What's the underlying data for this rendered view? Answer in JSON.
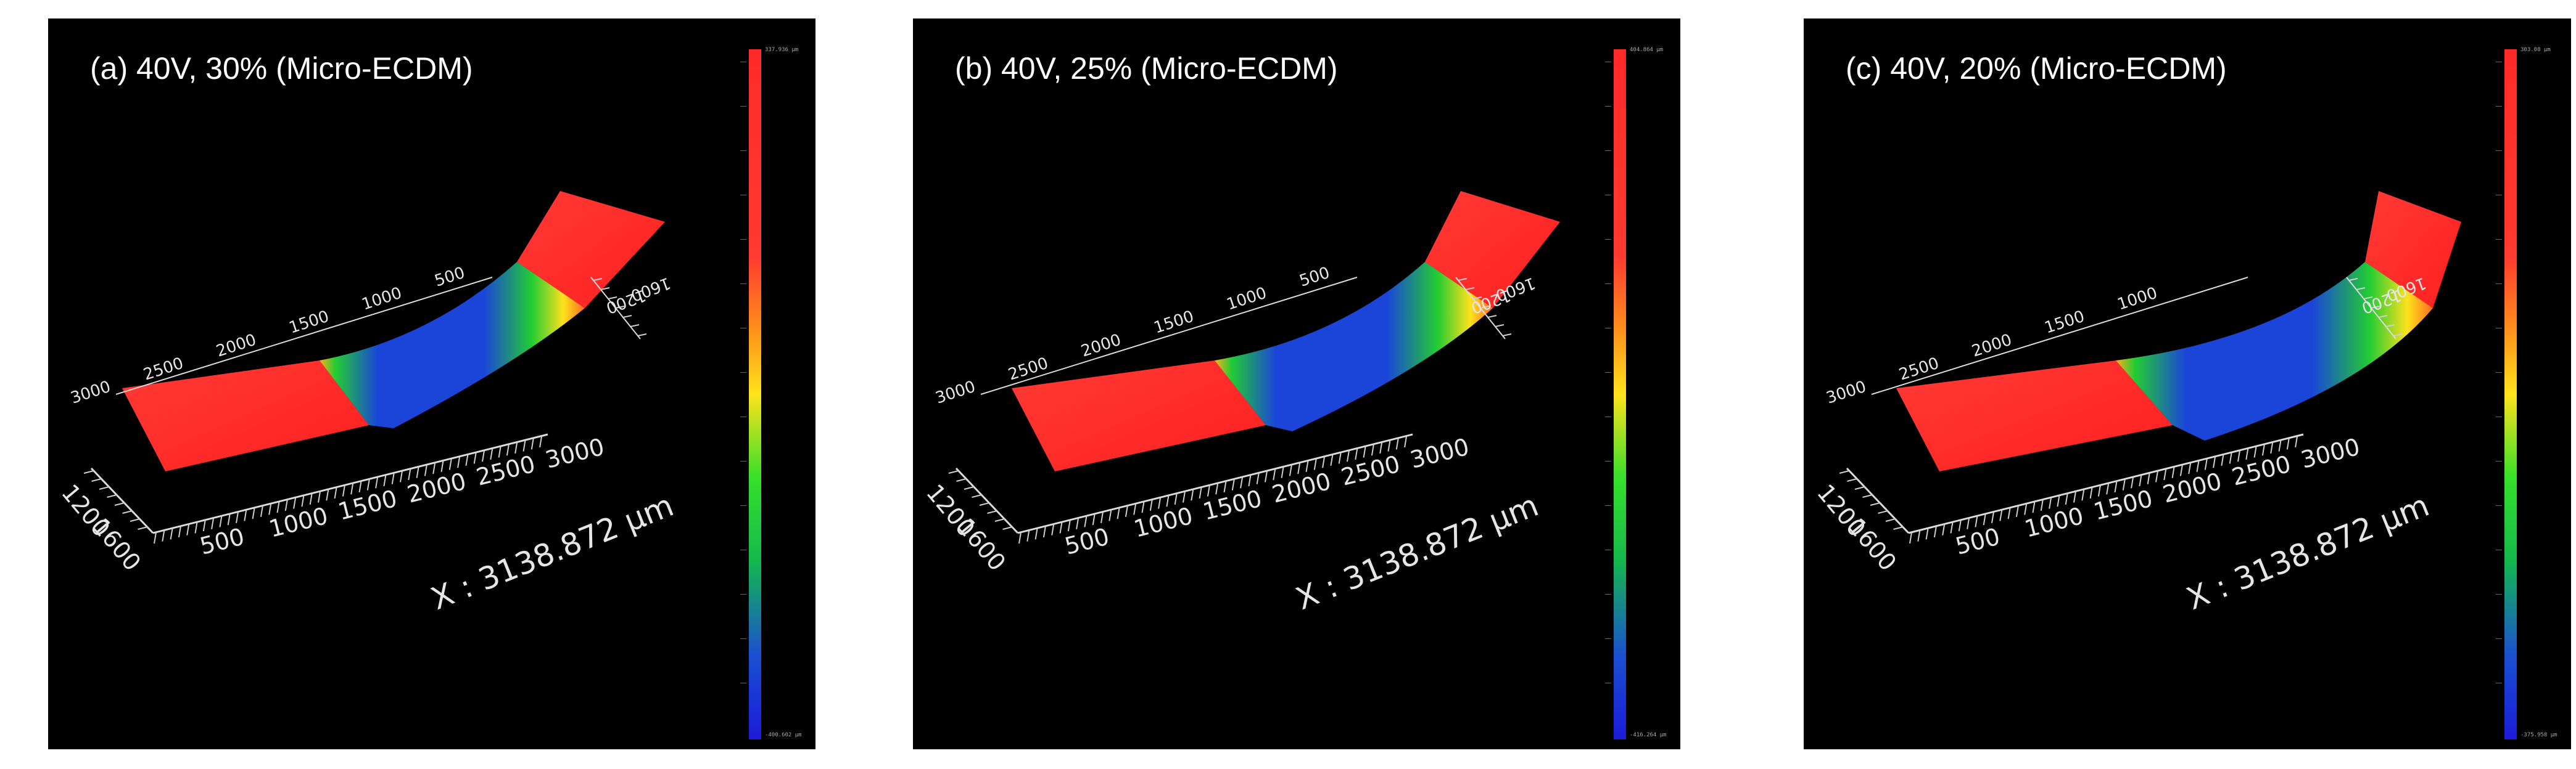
{
  "panels": [
    {
      "id": "a",
      "title": "(a) 40V, 30% (Micro-ECDM)",
      "colorbar": {
        "max": "337.936 µm",
        "min": "-400.602 µm"
      },
      "x_axis": {
        "label": "X : 3138.872 µm",
        "ticks": [
          "500",
          "1000",
          "1500",
          "2000",
          "2500",
          "3000"
        ]
      },
      "y_axis": {
        "ticks": [
          "1200",
          "1600"
        ]
      },
      "back_axis": {
        "ticks": [
          "3000",
          "2500",
          "2000",
          "1500",
          "1000",
          "500"
        ]
      },
      "right_axis": {
        "ticks": [
          "1200",
          "1600"
        ]
      }
    },
    {
      "id": "b",
      "title": "(b) 40V, 25% (Micro-ECDM)",
      "colorbar": {
        "max": "404.864 µm",
        "min": "-416.264 µm"
      },
      "x_axis": {
        "label": "X : 3138.872 µm",
        "ticks": [
          "500",
          "1000",
          "1500",
          "2000",
          "2500",
          "3000"
        ]
      },
      "y_axis": {
        "ticks": [
          "1200",
          "1600"
        ]
      },
      "back_axis": {
        "ticks": [
          "3000",
          "2500",
          "2000",
          "1500",
          "1000",
          "500"
        ]
      },
      "right_axis": {
        "ticks": [
          "1200",
          "1600"
        ]
      }
    },
    {
      "id": "c",
      "title": "(c) 40V, 20% (Micro-ECDM)",
      "colorbar": {
        "max": "303.08 µm",
        "min": "-375.958 µm"
      },
      "x_axis": {
        "label": "X : 3138.872 µm",
        "ticks": [
          "500",
          "1000",
          "1500",
          "2000",
          "2500",
          "3000"
        ]
      },
      "y_axis": {
        "ticks": [
          "1200",
          "1600"
        ]
      },
      "back_axis": {
        "ticks": [
          "3000",
          "2500",
          "2000",
          "1500",
          "1000"
        ]
      },
      "right_axis": {
        "ticks": [
          "1200",
          "1600"
        ]
      }
    }
  ],
  "colors": {
    "surface_high": "#ff2a2a",
    "surface_mid_orange": "#ff8a1c",
    "surface_mid_yellow": "#ffe21c",
    "surface_green": "#22cc33",
    "surface_low": "#1b3fd6",
    "background": "#000000",
    "axis": "#dcdcdc"
  }
}
